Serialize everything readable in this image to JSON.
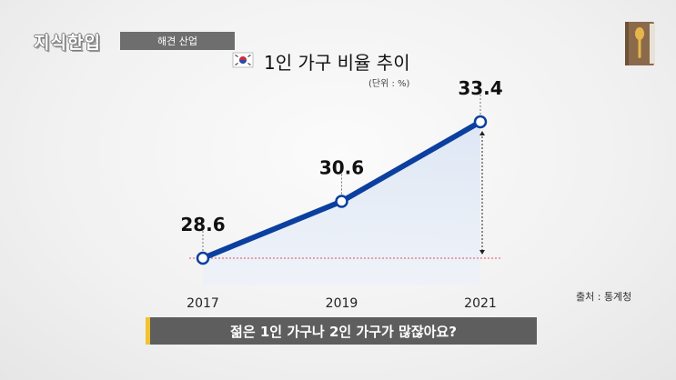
{
  "header": {
    "logo_text": "지식한입",
    "topic_label": "해견 산업",
    "icon": "book-spoon-icon"
  },
  "chart_data": {
    "type": "line",
    "title": "1인 가구 비율 추이",
    "unit_label": "(단위 : %)",
    "flag_icon": "korea-flag-icon",
    "x": [
      "2017",
      "2019",
      "2021"
    ],
    "series": [
      {
        "values": [
          28.6,
          30.6,
          33.4
        ]
      }
    ],
    "data_labels": [
      "28.6",
      "30.6",
      "33.4"
    ],
    "ylim": [
      27.5,
      34.5
    ],
    "grid": false,
    "source": "출처 : 통계청",
    "colors": {
      "line": "#0b3fa0",
      "fill": "#dde6f3",
      "baseline": "#e0505a",
      "marker_fill": "#ffffff"
    }
  },
  "caption": {
    "text": "젊은 1인 가구나 2인 가구가 많잖아요?",
    "accent_color": "#f2c230"
  }
}
